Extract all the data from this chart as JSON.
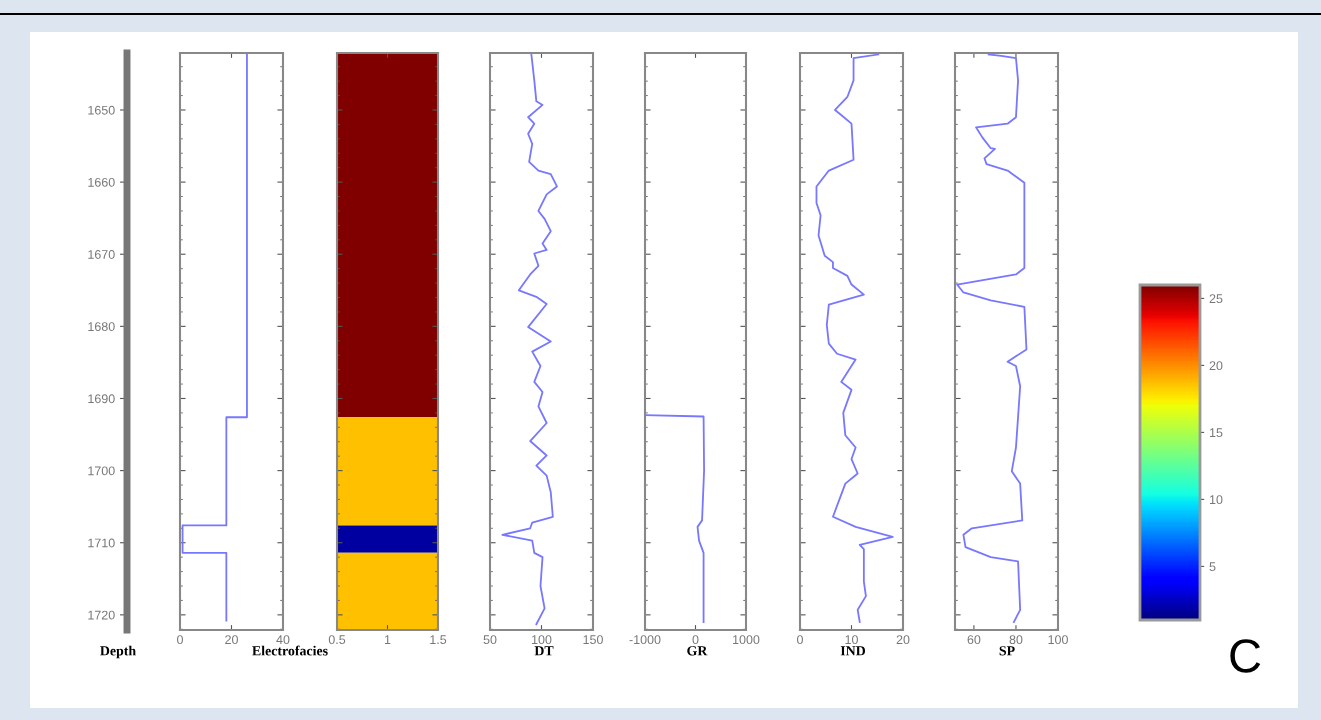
{
  "chart_data": [
    {
      "type": "line",
      "orientation": "horizontal",
      "ylabel": "Depth",
      "xlabel": "Electrofacies",
      "xlim": [
        0,
        40
      ],
      "xticks": [
        0,
        20,
        40
      ],
      "ylim": [
        1722.1,
        1642.1
      ],
      "yticks": [
        1650,
        1660,
        1670,
        1680,
        1690,
        1700,
        1710,
        1720
      ],
      "series": [
        {
          "color": "#7777ff",
          "x": [
            1642.1,
            1692.6,
            1692.6,
            1707.6,
            1707.6,
            1711.4,
            1711.4,
            1720.8
          ],
          "values": [
            26,
            26,
            18,
            18,
            1,
            1,
            18,
            18
          ]
        }
      ]
    },
    {
      "type": "line",
      "xlim": [
        0.5,
        1.5
      ],
      "xticks": [
        0.5,
        1,
        1.5
      ],
      "ylim": [
        1722.1,
        1642.1
      ],
      "tick_labels": "x",
      "clim": [
        1,
        26
      ],
      "cticks": [
        5,
        10,
        15,
        20,
        25
      ],
      "bands": [
        {
          "axis": "y",
          "from": 1642.1,
          "to": 1692.6,
          "color": "#800000"
        },
        {
          "axis": "y",
          "from": 1692.6,
          "to": 1707.6,
          "color": "#ffc000"
        },
        {
          "axis": "y",
          "from": 1707.6,
          "to": 1711.4,
          "color": "#0000a0"
        },
        {
          "axis": "y",
          "from": 1711.4,
          "to": 1722.1,
          "color": "#ffc000"
        }
      ]
    },
    {
      "type": "line",
      "orientation": "horizontal",
      "xlabel": "DT",
      "xlim": [
        50,
        150
      ],
      "xticks": [
        50,
        100,
        150
      ],
      "ylim": [
        1722.1,
        1642.1
      ],
      "tick_labels": "x",
      "series": [
        {
          "color": "#7777ff",
          "x": [
            1642.1,
            1645.9,
            1648.8,
            1649.3,
            1651.0,
            1651.9,
            1653.3,
            1654.7,
            1657.2,
            1658.4,
            1658.9,
            1660.6,
            1661.7,
            1664.0,
            1665.1,
            1666.8,
            1668.5,
            1669.4,
            1669.9,
            1671.6,
            1672.8,
            1675.0,
            1675.9,
            1676.9,
            1680.1,
            1682.1,
            1683.5,
            1685.5,
            1687.7,
            1689.1,
            1691.1,
            1693.4,
            1695.9,
            1697.9,
            1699.3,
            1700.7,
            1703.0,
            1706.4,
            1707.2,
            1708.0,
            1708.9,
            1709.7,
            1711.4,
            1712.0,
            1716.0,
            1719.1,
            1721.3
          ],
          "values": [
            90,
            93,
            95,
            101,
            87,
            93,
            87,
            91,
            88,
            97,
            109,
            115,
            105,
            97,
            103,
            109,
            101,
            105,
            93,
            97,
            89,
            78,
            95,
            105,
            87,
            109,
            91,
            99,
            93,
            101,
            97,
            105,
            89,
            105,
            95,
            105,
            109,
            111,
            91,
            89,
            62,
            91,
            93,
            101,
            99,
            103,
            95
          ]
        }
      ]
    },
    {
      "type": "line",
      "orientation": "horizontal",
      "xlabel": "GR",
      "xlim": [
        -1000,
        1000
      ],
      "xticks": [
        -1000,
        0,
        1000
      ],
      "ylim": [
        1722.1,
        1642.1
      ],
      "tick_labels": "x",
      "series": [
        {
          "color": "#7777ff",
          "x": [
            1692.3,
            1692.5,
            1700.0,
            1706.9,
            1707.8,
            1709.7,
            1711.4,
            1721.0
          ],
          "values": [
            -1000,
            160,
            170,
            130,
            40,
            70,
            160,
            160
          ]
        }
      ]
    },
    {
      "type": "line",
      "orientation": "horizontal",
      "xlabel": "IND",
      "xlim": [
        0,
        20
      ],
      "xticks": [
        0,
        10,
        20
      ],
      "ylim": [
        1722.1,
        1642.1
      ],
      "tick_labels": "x",
      "series": [
        {
          "color": "#7777ff",
          "x": [
            1642.3,
            1642.8,
            1645.9,
            1648.2,
            1650.0,
            1650.7,
            1651.9,
            1656.9,
            1658.4,
            1660.6,
            1662.9,
            1664.6,
            1667.4,
            1670.2,
            1671.1,
            1671.9,
            1673.0,
            1674.2,
            1675.6,
            1677.0,
            1679.8,
            1682.4,
            1683.8,
            1684.6,
            1687.7,
            1688.8,
            1692.0,
            1695.1,
            1696.8,
            1698.4,
            1700.4,
            1701.8,
            1706.4,
            1707.8,
            1709.2,
            1710.3,
            1710.9,
            1715.4,
            1717.4,
            1719.3,
            1721.0
          ],
          "values": [
            15.2,
            10.4,
            10.4,
            9.2,
            6.8,
            8.0,
            10.0,
            10.4,
            5.6,
            3.2,
            3.2,
            4.0,
            3.6,
            4.8,
            6.4,
            6.4,
            9.2,
            10.0,
            12.4,
            5.6,
            5.2,
            5.6,
            7.2,
            10.8,
            8.0,
            10.0,
            8.4,
            8.8,
            10.8,
            10.0,
            11.2,
            8.8,
            6.4,
            10.8,
            18.0,
            11.6,
            12.4,
            12.4,
            12.8,
            11.2,
            11.6
          ]
        }
      ]
    },
    {
      "type": "line",
      "orientation": "horizontal",
      "xlabel": "SP",
      "xlim": [
        51,
        100
      ],
      "xticks": [
        60,
        80,
        100
      ],
      "ylim": [
        1722.1,
        1642.1
      ],
      "tick_labels": "x",
      "annotations": [
        "C"
      ],
      "series": [
        {
          "color": "#7777ff",
          "x": [
            1642.3,
            1642.5,
            1642.8,
            1645.9,
            1651.0,
            1651.9,
            1652.4,
            1653.8,
            1655.3,
            1655.4,
            1656.7,
            1657.5,
            1658.4,
            1660.1,
            1664.0,
            1671.9,
            1672.8,
            1674.2,
            1675.3,
            1676.4,
            1677.3,
            1683.2,
            1684.9,
            1685.5,
            1688.3,
            1696.8,
            1700.1,
            1701.8,
            1706.9,
            1708.0,
            1708.9,
            1710.6,
            1712.0,
            1712.6,
            1719.3,
            1721.0
          ],
          "values": [
            67,
            73,
            80,
            81,
            80,
            76,
            61,
            64,
            68,
            70,
            65,
            66,
            76,
            84,
            84,
            84,
            80,
            52,
            55,
            68,
            84,
            85,
            76,
            80,
            82,
            80,
            78,
            82,
            83,
            59,
            55,
            56,
            68,
            81,
            82,
            79
          ]
        }
      ]
    }
  ]
}
